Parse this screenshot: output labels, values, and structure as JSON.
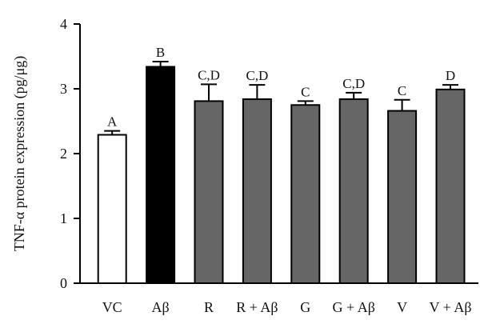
{
  "chart_data": {
    "type": "bar",
    "title": "",
    "xlabel": "",
    "ylabel": "TNF-α protein expression (pg/μg)",
    "ylim": [
      0,
      4
    ],
    "yticks": [
      "0",
      "1",
      "2",
      "3",
      "4"
    ],
    "categories": [
      "VC",
      "Aβ",
      "R",
      "R + Aβ",
      "G",
      "G + Aβ",
      "V",
      "V + Aβ"
    ],
    "values": [
      2.29,
      3.34,
      2.81,
      2.84,
      2.75,
      2.84,
      2.66,
      2.99
    ],
    "errors": [
      0.06,
      0.08,
      0.26,
      0.22,
      0.06,
      0.1,
      0.17,
      0.07
    ],
    "significance": [
      "A",
      "B",
      "C,D",
      "C,D",
      "C",
      "C,D",
      "C",
      "D"
    ],
    "fill_colors": [
      "#ffffff",
      "#000000",
      "#666666",
      "#666666",
      "#666666",
      "#666666",
      "#666666",
      "#666666"
    ],
    "edge_color": "#000000"
  }
}
